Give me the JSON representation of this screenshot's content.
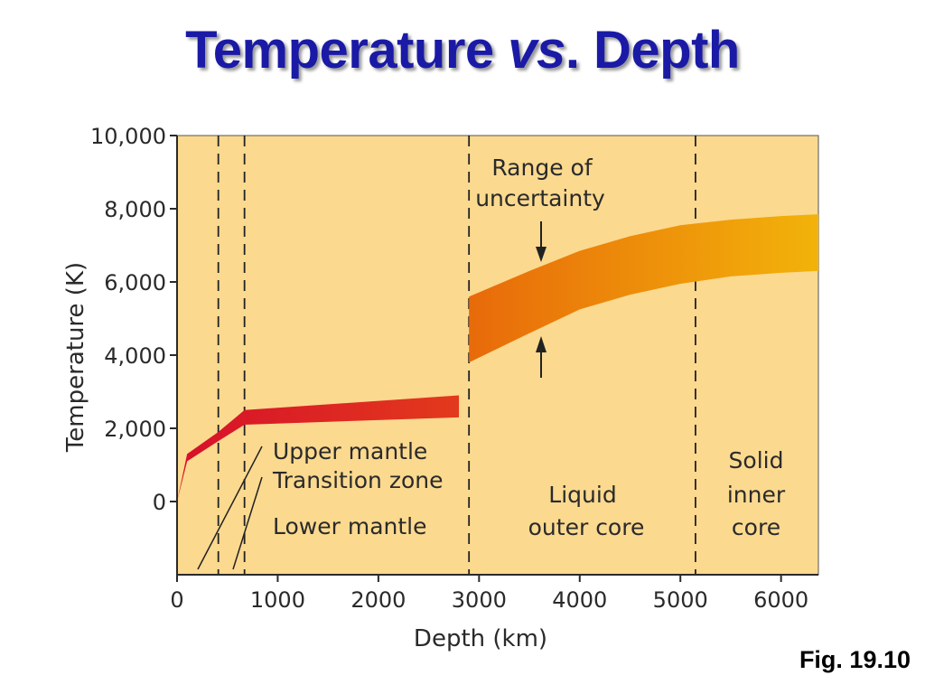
{
  "slide": {
    "title_main": "Temperature",
    "title_em": "vs",
    "title_end": ". Depth",
    "fig_label": "Fig. 19.10"
  },
  "chart_data": {
    "type": "area",
    "xlabel": "Depth (km)",
    "ylabel": "Temperature (K)",
    "xlim": [
      0,
      6371
    ],
    "ylim": [
      -2000,
      10000
    ],
    "x_ticks": [
      0,
      1000,
      2000,
      3000,
      4000,
      5000,
      6000
    ],
    "x_tick_labels": [
      "0",
      "1000",
      "2000",
      "3000",
      "4000",
      "5000",
      "6000"
    ],
    "y_ticks": [
      0,
      2000,
      4000,
      6000,
      8000,
      10000
    ],
    "y_tick_labels": [
      "0",
      "2,000",
      "4,000",
      "6,000",
      "8,000",
      "10,000"
    ],
    "boundaries_km": [
      410,
      670,
      2900,
      5150
    ],
    "series": [
      {
        "segment": "mantle",
        "x": [
          0,
          100,
          410,
          670,
          2800,
          2850,
          2800
        ],
        "upper": [
          0,
          1300,
          1900,
          2500,
          2900,
          3800,
          2900
        ],
        "lower": [
          0,
          1100,
          1650,
          2100,
          2300,
          2750,
          2300
        ]
      },
      {
        "segment": "core",
        "x": [
          2900,
          3500,
          4000,
          4500,
          5000,
          5500,
          6000,
          6371
        ],
        "upper": [
          5600,
          6300,
          6850,
          7250,
          7550,
          7700,
          7800,
          7850
        ],
        "lower": [
          3800,
          4600,
          5250,
          5650,
          5950,
          6150,
          6250,
          6300
        ]
      }
    ],
    "annotations": {
      "uncertainty_line1": "Range of",
      "uncertainty_line2": "uncertainty",
      "upper_mantle": "Upper mantle",
      "transition_zone": "Transition zone",
      "lower_mantle": "Lower mantle",
      "outer_core_line1": "Liquid",
      "outer_core_line2": "outer core",
      "inner_core_line1": "Solid",
      "inner_core_line2": "inner",
      "inner_core_line3": "core"
    },
    "colors": {
      "background": "#fbd98f",
      "mantle_start": "#d6102a",
      "mantle_end": "#e33a1c",
      "core_start": "#e86a0a",
      "core_end": "#f2b30a"
    }
  }
}
